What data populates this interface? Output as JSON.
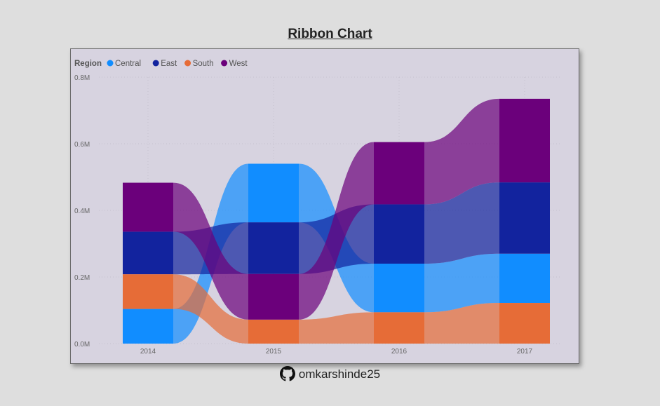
{
  "title": "Ribbon Chart",
  "footer": {
    "username": "omkarshinde25",
    "icon": "github-icon"
  },
  "chart_data": {
    "type": "ribbon",
    "legend": {
      "title": "Region",
      "position": "top-left"
    },
    "categories": [
      "2014",
      "2015",
      "2016",
      "2017"
    ],
    "series": [
      {
        "name": "Central",
        "color": "#118dff",
        "values": [
          0.104,
          0.176,
          0.146,
          0.148
        ]
      },
      {
        "name": "East",
        "color": "#12239e",
        "values": [
          0.128,
          0.155,
          0.178,
          0.214
        ]
      },
      {
        "name": "South",
        "color": "#e66c37",
        "values": [
          0.104,
          0.072,
          0.094,
          0.122
        ]
      },
      {
        "name": "West",
        "color": "#6b007b",
        "values": [
          0.147,
          0.137,
          0.187,
          0.251
        ]
      }
    ],
    "ylim": [
      0,
      0.8
    ],
    "yticks": [
      "0.0M",
      "0.2M",
      "0.4M",
      "0.6M",
      "0.8M"
    ],
    "grid": true
  }
}
